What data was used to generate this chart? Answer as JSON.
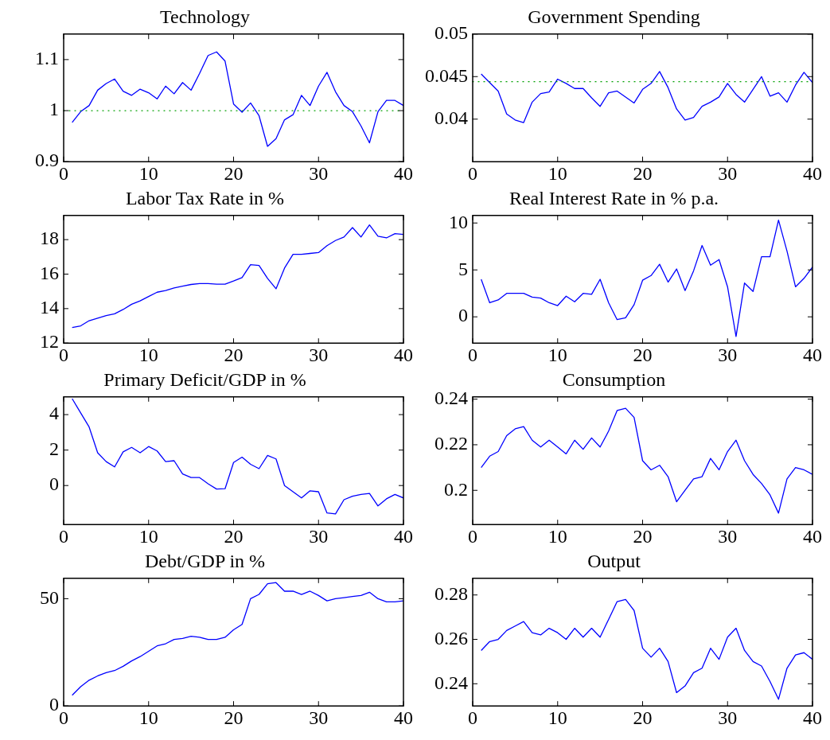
{
  "chart_data": [
    {
      "type": "line",
      "title": "Technology",
      "x": [
        1,
        2,
        3,
        4,
        5,
        6,
        7,
        8,
        9,
        10,
        11,
        12,
        13,
        14,
        15,
        16,
        17,
        18,
        19,
        20,
        21,
        22,
        23,
        24,
        25,
        26,
        27,
        28,
        29,
        30,
        31,
        32,
        33,
        34,
        35,
        36,
        37,
        38,
        39,
        40
      ],
      "xlim": [
        0,
        40
      ],
      "xticks": [
        0,
        10,
        20,
        30,
        40
      ],
      "ylim": [
        0.9,
        1.15
      ],
      "yticks": [
        0.9,
        1,
        1.1
      ],
      "grid": false,
      "legend": false,
      "marker": "none",
      "line_style": "solid",
      "ref_lines": [
        {
          "axis": "y",
          "value": 1,
          "color": "#00a000",
          "line_style": "dotted"
        }
      ],
      "series": [
        {
          "color": "#0000ff",
          "values": [
            0.977,
            0.998,
            1.01,
            1.04,
            1.053,
            1.062,
            1.038,
            1.03,
            1.042,
            1.035,
            1.023,
            1.048,
            1.033,
            1.055,
            1.04,
            1.073,
            1.108,
            1.115,
            1.097,
            1.013,
            0.997,
            1.015,
            0.99,
            0.93,
            0.945,
            0.982,
            0.992,
            1.03,
            1.01,
            1.048,
            1.075,
            1.037,
            1.01,
            0.998,
            0.97,
            0.937,
            0.998,
            1.02,
            1.02,
            1.01
          ]
        }
      ]
    },
    {
      "type": "line",
      "title": "Government Spending",
      "x": [
        1,
        2,
        3,
        4,
        5,
        6,
        7,
        8,
        9,
        10,
        11,
        12,
        13,
        14,
        15,
        16,
        17,
        18,
        19,
        20,
        21,
        22,
        23,
        24,
        25,
        26,
        27,
        28,
        29,
        30,
        31,
        32,
        33,
        34,
        35,
        36,
        37,
        38,
        39,
        40
      ],
      "xlim": [
        0,
        40
      ],
      "xticks": [
        0,
        10,
        20,
        30,
        40
      ],
      "ylim": [
        0.035,
        0.05
      ],
      "yticks": [
        0.04,
        0.045,
        0.05
      ],
      "grid": false,
      "legend": false,
      "marker": "none",
      "line_style": "solid",
      "ref_lines": [
        {
          "axis": "y",
          "value": 0.0444,
          "color": "#00a000",
          "line_style": "dotted"
        }
      ],
      "series": [
        {
          "color": "#0000ff",
          "values": [
            0.0453,
            0.0443,
            0.0433,
            0.0406,
            0.0399,
            0.0396,
            0.042,
            0.043,
            0.0432,
            0.0447,
            0.0442,
            0.0436,
            0.0436,
            0.0425,
            0.0415,
            0.0431,
            0.0433,
            0.0426,
            0.0419,
            0.0435,
            0.0442,
            0.0456,
            0.0437,
            0.0412,
            0.0399,
            0.0402,
            0.0415,
            0.042,
            0.0426,
            0.0442,
            0.0429,
            0.042,
            0.0435,
            0.045,
            0.0427,
            0.0431,
            0.042,
            0.044,
            0.0455,
            0.0443
          ]
        }
      ]
    },
    {
      "type": "line",
      "title": "Labor Tax Rate in %",
      "x": [
        1,
        2,
        3,
        4,
        5,
        6,
        7,
        8,
        9,
        10,
        11,
        12,
        13,
        14,
        15,
        16,
        17,
        18,
        19,
        20,
        21,
        22,
        23,
        24,
        25,
        26,
        27,
        28,
        29,
        30,
        31,
        32,
        33,
        34,
        35,
        36,
        37,
        38,
        39,
        40
      ],
      "xlim": [
        0,
        40
      ],
      "xticks": [
        0,
        10,
        20,
        30,
        40
      ],
      "ylim": [
        12,
        19.4
      ],
      "yticks": [
        12,
        14,
        16,
        18
      ],
      "grid": false,
      "legend": false,
      "marker": "none",
      "line_style": "solid",
      "series": [
        {
          "color": "#0000ff",
          "values": [
            12.9,
            13.0,
            13.3,
            13.45,
            13.6,
            13.7,
            13.95,
            14.25,
            14.45,
            14.7,
            14.95,
            15.05,
            15.2,
            15.3,
            15.4,
            15.45,
            15.45,
            15.42,
            15.42,
            15.6,
            15.8,
            16.55,
            16.5,
            15.75,
            15.15,
            16.35,
            17.15,
            17.15,
            17.2,
            17.25,
            17.65,
            17.95,
            18.15,
            18.7,
            18.15,
            18.85,
            18.2,
            18.1,
            18.35,
            18.3
          ]
        }
      ]
    },
    {
      "type": "line",
      "title": "Real Interest Rate in % p.a.",
      "x": [
        1,
        2,
        3,
        4,
        5,
        6,
        7,
        8,
        9,
        10,
        11,
        12,
        13,
        14,
        15,
        16,
        17,
        18,
        19,
        20,
        21,
        22,
        23,
        24,
        25,
        26,
        27,
        28,
        29,
        30,
        31,
        32,
        33,
        34,
        35,
        36,
        37,
        38,
        39,
        40
      ],
      "xlim": [
        0,
        40
      ],
      "xticks": [
        0,
        10,
        20,
        30,
        40
      ],
      "ylim": [
        -2.8,
        10.8
      ],
      "yticks": [
        0,
        5,
        10
      ],
      "grid": false,
      "legend": false,
      "marker": "none",
      "line_style": "solid",
      "series": [
        {
          "color": "#0000ff",
          "values": [
            4,
            1.5,
            1.8,
            2.5,
            2.5,
            2.5,
            2.1,
            2.0,
            1.5,
            1.2,
            2.2,
            1.6,
            2.5,
            2.4,
            4.0,
            1.5,
            -0.3,
            -0.1,
            1.3,
            3.9,
            4.4,
            5.6,
            3.7,
            5.1,
            2.8,
            4.9,
            7.6,
            5.5,
            6.1,
            3.2,
            -2.1,
            3.6,
            2.7,
            6.4,
            6.4,
            10.3,
            7.0,
            3.2,
            4.1,
            5.3
          ]
        }
      ]
    },
    {
      "type": "line",
      "title": "Primary Deficit/GDP in %",
      "x": [
        1,
        2,
        3,
        4,
        5,
        6,
        7,
        8,
        9,
        10,
        11,
        12,
        13,
        14,
        15,
        16,
        17,
        18,
        19,
        20,
        21,
        22,
        23,
        24,
        25,
        26,
        27,
        28,
        29,
        30,
        31,
        32,
        33,
        34,
        35,
        36,
        37,
        38,
        39,
        40
      ],
      "xlim": [
        0,
        40
      ],
      "xticks": [
        0,
        10,
        20,
        30,
        40
      ],
      "ylim": [
        -2.2,
        5
      ],
      "yticks": [
        0,
        2,
        4
      ],
      "grid": false,
      "legend": false,
      "marker": "none",
      "line_style": "solid",
      "series": [
        {
          "color": "#0000ff",
          "values": [
            4.9,
            4.1,
            3.3,
            1.85,
            1.35,
            1.05,
            1.9,
            2.15,
            1.85,
            2.2,
            1.95,
            1.35,
            1.4,
            0.65,
            0.45,
            0.45,
            0.1,
            -0.2,
            -0.18,
            1.3,
            1.6,
            1.2,
            0.95,
            1.7,
            1.5,
            0.0,
            -0.35,
            -0.7,
            -0.3,
            -0.35,
            -1.55,
            -1.6,
            -0.8,
            -0.6,
            -0.5,
            -0.45,
            -1.15,
            -0.75,
            -0.5,
            -0.7
          ]
        }
      ]
    },
    {
      "type": "line",
      "title": "Consumption",
      "x": [
        1,
        2,
        3,
        4,
        5,
        6,
        7,
        8,
        9,
        10,
        11,
        12,
        13,
        14,
        15,
        16,
        17,
        18,
        19,
        20,
        21,
        22,
        23,
        24,
        25,
        26,
        27,
        28,
        29,
        30,
        31,
        32,
        33,
        34,
        35,
        36,
        37,
        38,
        39,
        40
      ],
      "xlim": [
        0,
        40
      ],
      "xticks": [
        0,
        10,
        20,
        30,
        40
      ],
      "ylim": [
        0.185,
        0.241
      ],
      "yticks": [
        0.2,
        0.22,
        0.24
      ],
      "grid": false,
      "legend": false,
      "marker": "none",
      "line_style": "solid",
      "series": [
        {
          "color": "#0000ff",
          "values": [
            0.21,
            0.215,
            0.217,
            0.224,
            0.227,
            0.228,
            0.222,
            0.219,
            0.222,
            0.219,
            0.216,
            0.222,
            0.218,
            0.223,
            0.219,
            0.226,
            0.235,
            0.236,
            0.232,
            0.213,
            0.209,
            0.211,
            0.206,
            0.195,
            0.2,
            0.205,
            0.206,
            0.214,
            0.209,
            0.217,
            0.222,
            0.213,
            0.207,
            0.203,
            0.198,
            0.19,
            0.205,
            0.21,
            0.209,
            0.207
          ]
        }
      ]
    },
    {
      "type": "line",
      "title": "Debt/GDP in %",
      "x": [
        1,
        2,
        3,
        4,
        5,
        6,
        7,
        8,
        9,
        10,
        11,
        12,
        13,
        14,
        15,
        16,
        17,
        18,
        19,
        20,
        21,
        22,
        23,
        24,
        25,
        26,
        27,
        28,
        29,
        30,
        31,
        32,
        33,
        34,
        35,
        36,
        37,
        38,
        39,
        40
      ],
      "xlim": [
        0,
        40
      ],
      "xticks": [
        0,
        10,
        20,
        30,
        40
      ],
      "ylim": [
        0,
        59.5
      ],
      "yticks": [
        0,
        50
      ],
      "grid": false,
      "legend": false,
      "marker": "none",
      "line_style": "solid",
      "series": [
        {
          "color": "#0000ff",
          "values": [
            5,
            9,
            12,
            14,
            15.5,
            16.5,
            18.5,
            21,
            23,
            25.5,
            28,
            29,
            31,
            31.5,
            32.5,
            32,
            31,
            31,
            32,
            35.5,
            38,
            50,
            52,
            57,
            57.5,
            53.5,
            53.5,
            52,
            53.5,
            51.5,
            49,
            50,
            50.5,
            51,
            51.5,
            53,
            50,
            48.5,
            48.5,
            49
          ]
        }
      ]
    },
    {
      "type": "line",
      "title": "Output",
      "x": [
        1,
        2,
        3,
        4,
        5,
        6,
        7,
        8,
        9,
        10,
        11,
        12,
        13,
        14,
        15,
        16,
        17,
        18,
        19,
        20,
        21,
        22,
        23,
        24,
        25,
        26,
        27,
        28,
        29,
        30,
        31,
        32,
        33,
        34,
        35,
        36,
        37,
        38,
        39,
        40
      ],
      "xlim": [
        0,
        40
      ],
      "xticks": [
        0,
        10,
        20,
        30,
        40
      ],
      "ylim": [
        0.23,
        0.2875
      ],
      "yticks": [
        0.24,
        0.26,
        0.28
      ],
      "grid": false,
      "legend": false,
      "marker": "none",
      "line_style": "solid",
      "series": [
        {
          "color": "#0000ff",
          "values": [
            0.255,
            0.259,
            0.26,
            0.264,
            0.266,
            0.268,
            0.263,
            0.262,
            0.265,
            0.263,
            0.26,
            0.265,
            0.261,
            0.265,
            0.261,
            0.269,
            0.277,
            0.278,
            0.273,
            0.256,
            0.252,
            0.256,
            0.25,
            0.236,
            0.239,
            0.245,
            0.247,
            0.256,
            0.251,
            0.261,
            0.265,
            0.255,
            0.25,
            0.248,
            0.241,
            0.233,
            0.247,
            0.253,
            0.254,
            0.251
          ]
        }
      ]
    }
  ]
}
